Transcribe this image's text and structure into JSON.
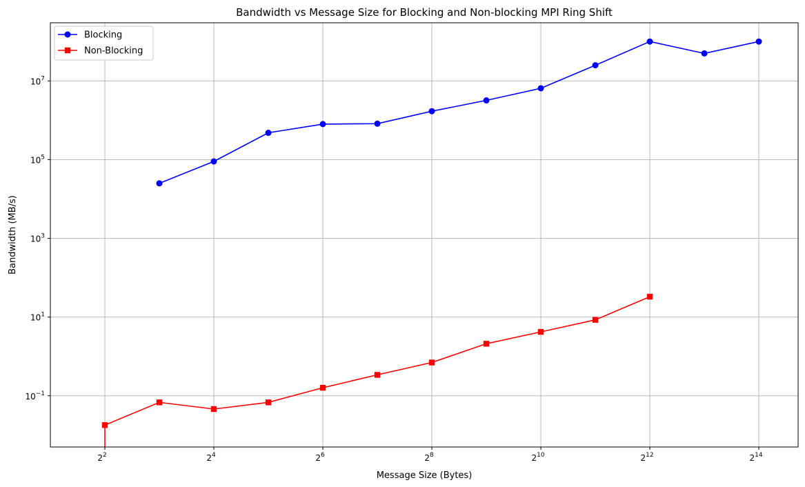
{
  "chart_data": {
    "type": "line",
    "title": "Bandwidth vs Message Size for Blocking and Non-blocking MPI Ring Shift",
    "xlabel": "Message Size (Bytes)",
    "ylabel": "Bandwidth (MB/s)",
    "xscale": "log2",
    "yscale": "log10",
    "xlim": [
      2,
      27000
    ],
    "ylim": [
      0.005,
      300000000
    ],
    "x_ticks": [
      {
        "base": "2",
        "exp": "2",
        "value": 4
      },
      {
        "base": "2",
        "exp": "4",
        "value": 16
      },
      {
        "base": "2",
        "exp": "6",
        "value": 64
      },
      {
        "base": "2",
        "exp": "8",
        "value": 256
      },
      {
        "base": "2",
        "exp": "10",
        "value": 1024
      },
      {
        "base": "2",
        "exp": "12",
        "value": 4096
      },
      {
        "base": "2",
        "exp": "14",
        "value": 16384
      }
    ],
    "y_ticks": [
      {
        "base": "10",
        "exp": "−1",
        "value": 0.1
      },
      {
        "base": "10",
        "exp": "1",
        "value": 10
      },
      {
        "base": "10",
        "exp": "3",
        "value": 1000
      },
      {
        "base": "10",
        "exp": "5",
        "value": 100000
      },
      {
        "base": "10",
        "exp": "7",
        "value": 10000000
      }
    ],
    "grid": true,
    "legend_position": "top-left",
    "series": [
      {
        "name": "Blocking",
        "color": "#0000ff",
        "marker": "circle",
        "x": [
          8,
          16,
          32,
          64,
          128,
          256,
          512,
          1024,
          2048,
          4096,
          8192,
          16384
        ],
        "y": [
          25000,
          90000,
          480000,
          800000,
          820000,
          1700000,
          3200000,
          6500000,
          25000000,
          100000000,
          50000000,
          100000000
        ]
      },
      {
        "name": "Non-Blocking",
        "color": "#ff0000",
        "marker": "square",
        "x": [
          4,
          8,
          16,
          32,
          64,
          128,
          256,
          512,
          1024,
          2048,
          4096
        ],
        "y": [
          0.018,
          0.068,
          0.046,
          0.068,
          0.16,
          0.34,
          0.7,
          2.1,
          4.2,
          8.5,
          33
        ]
      }
    ]
  }
}
